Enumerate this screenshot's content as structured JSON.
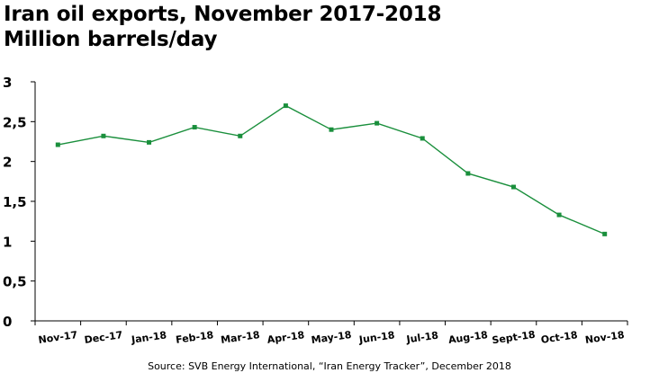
{
  "chart_data": {
    "type": "line",
    "title": "Iran oil exports, November 2017-2018",
    "subtitle": "Million barrels/day",
    "categories": [
      "Nov-17",
      "Dec-17",
      "Jan-18",
      "Feb-18",
      "Mar-18",
      "Apr-18",
      "May-18",
      "Jun-18",
      "Jul-18",
      "Aug-18",
      "Sept-18",
      "Oct-18",
      "Nov-18"
    ],
    "values": [
      2.21,
      2.32,
      2.24,
      2.43,
      2.32,
      2.7,
      2.4,
      2.48,
      2.29,
      1.85,
      1.68,
      1.33,
      1.09
    ],
    "ylim": [
      0,
      3
    ],
    "yticks": [
      0,
      0.5,
      1,
      1.5,
      2,
      2.5,
      3
    ],
    "ytick_labels": [
      "0",
      "0,5",
      "1",
      "1,5",
      "2",
      "2,5",
      "3"
    ],
    "xlabel": "",
    "ylabel": "",
    "grid": false,
    "legend": "none",
    "line_color": "#1a8f3c"
  },
  "source": "Source: SVB Energy International, “Iran Energy Tracker”, December 2018"
}
